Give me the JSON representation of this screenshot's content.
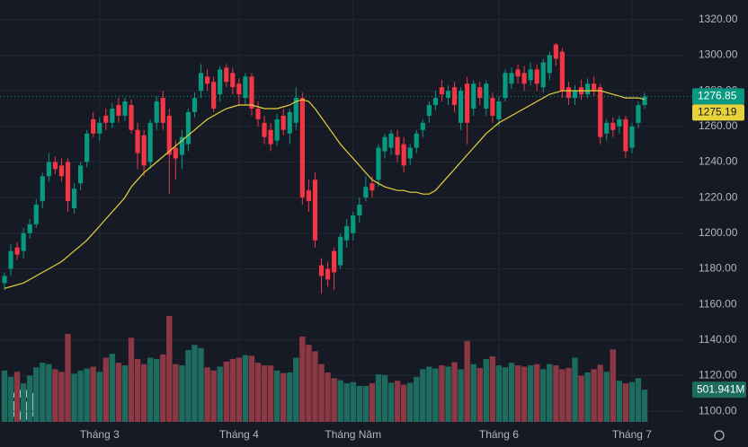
{
  "chart_data": {
    "type": "candlestick",
    "categories": [
      null,
      null,
      null,
      null,
      null,
      null,
      null,
      null,
      null,
      null,
      null,
      null,
      null,
      null,
      null,
      "Tháng 3",
      null,
      null,
      null,
      null,
      null,
      null,
      null,
      null,
      null,
      null,
      null,
      null,
      null,
      null,
      null,
      null,
      null,
      null,
      null,
      null,
      null,
      "Tháng 4",
      null,
      null,
      null,
      null,
      null,
      null,
      null,
      null,
      null,
      null,
      null,
      null,
      null,
      null,
      null,
      null,
      null,
      "Tháng Năm",
      null,
      null,
      null,
      null,
      null,
      null,
      null,
      null,
      null,
      null,
      null,
      null,
      null,
      null,
      null,
      null,
      null,
      null,
      null,
      null,
      null,
      null,
      "Tháng 6",
      null,
      null,
      null,
      null,
      null,
      null,
      null,
      null,
      null,
      null,
      null,
      null,
      null,
      null,
      null,
      null,
      null,
      null,
      null,
      null,
      "Tháng 7",
      null,
      null
    ],
    "open": [
      1172,
      1180,
      1192,
      1190,
      1200,
      1205,
      1218,
      1232,
      1240,
      1238,
      1240,
      1214,
      1228,
      1240,
      1264,
      1256,
      1266,
      1262,
      1272,
      1266,
      1272,
      1258,
      1255,
      1240,
      1262,
      1276,
      1266,
      1248,
      1244,
      1250,
      1268,
      1280,
      1288,
      1285,
      1278,
      1293,
      1290,
      1284,
      1276,
      1288,
      1270,
      1262,
      1258,
      1252,
      1266,
      1256,
      1262,
      1276,
      1224,
      1230,
      1182,
      1180,
      1190,
      1182,
      1196,
      1200,
      1210,
      1220,
      1228,
      1230,
      1246,
      1248,
      1254,
      1250,
      1242,
      1248,
      1258,
      1266,
      1272,
      1282,
      1276,
      1282,
      1262,
      1284,
      1270,
      1282,
      1270,
      1276,
      1264,
      1276,
      1284,
      1292,
      1290,
      1286,
      1292,
      1282,
      1290,
      1306,
      1302,
      1282,
      1276,
      1282,
      1278,
      1284,
      1282,
      1256,
      1262,
      1260,
      1264,
      1248,
      1262,
      1272
    ],
    "high": [
      1178,
      1194,
      1195,
      1203,
      1208,
      1219,
      1234,
      1245,
      1243,
      1242,
      1242,
      1228,
      1240,
      1258,
      1268,
      1265,
      1270,
      1273,
      1276,
      1276,
      1275,
      1262,
      1258,
      1264,
      1277,
      1280,
      1270,
      1252,
      1258,
      1270,
      1279,
      1295,
      1292,
      1288,
      1294,
      1295,
      1293,
      1287,
      1290,
      1290,
      1274,
      1266,
      1262,
      1267,
      1270,
      1270,
      1282,
      1279,
      1230,
      1234,
      1186,
      1184,
      1192,
      1200,
      1208,
      1212,
      1220,
      1232,
      1232,
      1250,
      1256,
      1258,
      1258,
      1254,
      1250,
      1258,
      1264,
      1274,
      1280,
      1286,
      1283,
      1285,
      1282,
      1288,
      1286,
      1285,
      1286,
      1279,
      1277,
      1292,
      1293,
      1295,
      1294,
      1296,
      1295,
      1298,
      1302,
      1307,
      1304,
      1285,
      1283,
      1286,
      1287,
      1288,
      1284,
      1264,
      1265,
      1266,
      1266,
      1262,
      1274,
      1279
    ],
    "low": [
      1168,
      1176,
      1185,
      1186,
      1197,
      1203,
      1214,
      1229,
      1233,
      1229,
      1212,
      1211,
      1224,
      1237,
      1254,
      1252,
      1258,
      1259,
      1262,
      1263,
      1256,
      1236,
      1232,
      1236,
      1258,
      1258,
      1222,
      1230,
      1236,
      1246,
      1265,
      1276,
      1280,
      1268,
      1274,
      1282,
      1278,
      1272,
      1272,
      1266,
      1260,
      1250,
      1246,
      1249,
      1255,
      1250,
      1258,
      1216,
      1212,
      1192,
      1166,
      1170,
      1168,
      1180,
      1192,
      1196,
      1206,
      1218,
      1220,
      1226,
      1242,
      1244,
      1240,
      1234,
      1238,
      1245,
      1254,
      1262,
      1269,
      1274,
      1272,
      1268,
      1258,
      1250,
      1266,
      1272,
      1266,
      1262,
      1260,
      1274,
      1281,
      1284,
      1280,
      1283,
      1280,
      1279,
      1286,
      1294,
      1276,
      1272,
      1272,
      1275,
      1276,
      1277,
      1250,
      1252,
      1254,
      1256,
      1242,
      1245,
      1259,
      1270
    ],
    "close": [
      1176,
      1190,
      1188,
      1200,
      1205,
      1216,
      1232,
      1240,
      1236,
      1232,
      1218,
      1225,
      1238,
      1256,
      1256,
      1262,
      1262,
      1270,
      1266,
      1274,
      1258,
      1245,
      1238,
      1262,
      1274,
      1262,
      1244,
      1242,
      1254,
      1268,
      1276,
      1290,
      1284,
      1270,
      1292,
      1285,
      1282,
      1278,
      1288,
      1270,
      1264,
      1254,
      1250,
      1264,
      1258,
      1268,
      1276,
      1220,
      1218,
      1196,
      1176,
      1174,
      1178,
      1198,
      1204,
      1210,
      1216,
      1226,
      1224,
      1248,
      1254,
      1256,
      1244,
      1238,
      1248,
      1256,
      1262,
      1272,
      1276,
      1278,
      1280,
      1272,
      1280,
      1262,
      1284,
      1276,
      1284,
      1266,
      1274,
      1290,
      1290,
      1288,
      1284,
      1292,
      1284,
      1296,
      1300,
      1298,
      1280,
      1276,
      1280,
      1278,
      1284,
      1280,
      1254,
      1262,
      1258,
      1264,
      1246,
      1260,
      1272,
      1276.85
    ],
    "up_color": "#089981",
    "down_color": "#f23645",
    "ma": {
      "color": "#e8d23c",
      "values": [
        1169,
        1170,
        1171,
        1172,
        1174,
        1176,
        1178,
        1180,
        1182,
        1184,
        1187,
        1190,
        1193,
        1196,
        1200,
        1204,
        1208,
        1212,
        1216,
        1220,
        1226,
        1230,
        1234,
        1237,
        1240,
        1243,
        1246,
        1249,
        1252,
        1255,
        1258,
        1261,
        1264,
        1266,
        1268,
        1270,
        1271,
        1272,
        1272,
        1272,
        1271,
        1270,
        1270,
        1270,
        1271,
        1272,
        1274,
        1275,
        1274,
        1270,
        1265,
        1260,
        1255,
        1250,
        1246,
        1242,
        1238,
        1234,
        1230,
        1228,
        1226,
        1225,
        1224,
        1224,
        1223,
        1223,
        1222,
        1222,
        1224,
        1228,
        1232,
        1236,
        1240,
        1244,
        1248,
        1252,
        1256,
        1259,
        1262,
        1264,
        1266,
        1268,
        1270,
        1272,
        1274,
        1276,
        1278,
        1279,
        1280,
        1280,
        1280,
        1280,
        1280,
        1280,
        1280,
        1279,
        1278,
        1277,
        1276,
        1276,
        1276,
        1275.19
      ]
    },
    "volume": {
      "up_color": "#1d6b5f",
      "down_color": "#8c3744",
      "ylim": [
        0,
        2000
      ],
      "values": [
        800,
        700,
        780,
        600,
        720,
        850,
        920,
        900,
        820,
        780,
        1370,
        750,
        800,
        830,
        860,
        780,
        1000,
        1060,
        920,
        880,
        1310,
        980,
        900,
        1000,
        980,
        1050,
        1650,
        900,
        880,
        1120,
        1200,
        1150,
        850,
        800,
        860,
        940,
        980,
        1000,
        1040,
        1030,
        920,
        880,
        880,
        800,
        760,
        770,
        1000,
        1330,
        1200,
        1100,
        900,
        770,
        680,
        650,
        600,
        620,
        560,
        560,
        600,
        740,
        730,
        610,
        640,
        580,
        610,
        700,
        820,
        860,
        830,
        880,
        860,
        930,
        820,
        1260,
        900,
        840,
        980,
        1020,
        880,
        850,
        920,
        880,
        860,
        880,
        900,
        820,
        900,
        880,
        820,
        840,
        1000,
        720,
        770,
        820,
        890,
        780,
        1130,
        640,
        600,
        620,
        680,
        501.941
      ],
      "last_label": "501.941M"
    },
    "ylim": [
      1094,
      1331
    ],
    "yticks": [
      {
        "value": 1100,
        "label": "1100.00"
      },
      {
        "value": 1120,
        "label": "1120.00"
      },
      {
        "value": 1140,
        "label": "1140.00"
      },
      {
        "value": 1160,
        "label": "1160.00"
      },
      {
        "value": 1180,
        "label": "1180.00"
      },
      {
        "value": 1200,
        "label": "1200.00"
      },
      {
        "value": 1220,
        "label": "1220.00"
      },
      {
        "value": 1240,
        "label": "1240.00"
      },
      {
        "value": 1260,
        "label": "1260.00"
      },
      {
        "value": 1280,
        "label": "1280.00"
      },
      {
        "value": 1300,
        "label": "1300.00"
      },
      {
        "value": 1320,
        "label": "1320.00"
      }
    ],
    "grid": true
  }
}
